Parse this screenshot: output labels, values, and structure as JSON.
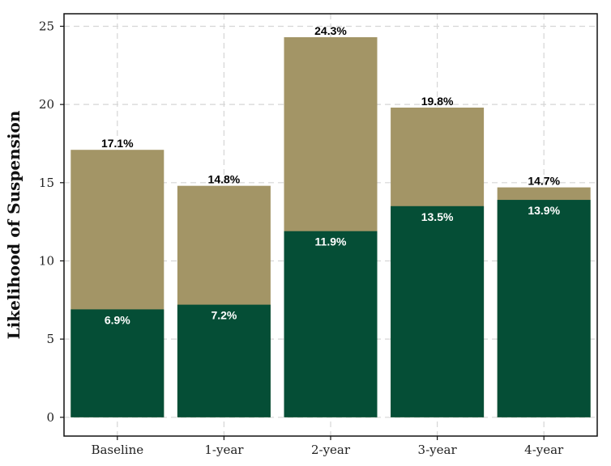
{
  "chart_data": {
    "type": "bar",
    "stacked": false,
    "overlay": true,
    "categories": [
      "Baseline",
      "1-year",
      "2-year",
      "3-year",
      "4-year"
    ],
    "series": [
      {
        "values": [
          17.1,
          14.8,
          24.3,
          19.8,
          14.7
        ],
        "color": "#a39566",
        "labels": [
          "17.1%",
          "14.8%",
          "24.3%",
          "19.8%",
          "14.7%"
        ]
      },
      {
        "values": [
          6.9,
          7.2,
          11.9,
          13.5,
          13.9
        ],
        "color": "#054e36",
        "labels": [
          "6.9%",
          "7.2%",
          "11.9%",
          "13.5%",
          "13.9%"
        ]
      }
    ],
    "ylabel": "Likelihood of Suspension",
    "xlabel": "",
    "ylim": [
      -1.2,
      25.8
    ],
    "yticks": [
      0,
      5,
      10,
      15,
      20,
      25
    ],
    "grid": true
  }
}
